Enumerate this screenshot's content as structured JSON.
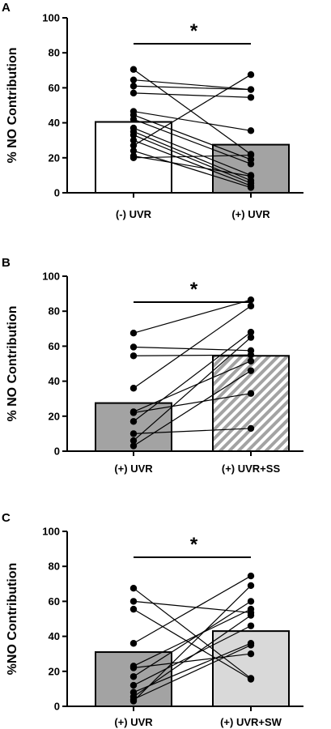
{
  "chart_data": [
    {
      "panel": "A",
      "type": "bar",
      "ylabel": "% NO Contribution",
      "ylim": [
        0,
        100
      ],
      "yticks": [
        0,
        20,
        40,
        60,
        80,
        100
      ],
      "categories": [
        "(-) UVR",
        "(+) UVR"
      ],
      "values": [
        40.5,
        27.5
      ],
      "bar_colors": [
        "#ffffff",
        "#a3a3a3"
      ],
      "bar_patterns": [
        "none",
        "none"
      ],
      "paired": [
        [
          70.5,
          22
        ],
        [
          64.5,
          59
        ],
        [
          61,
          59
        ],
        [
          57,
          54.5
        ],
        [
          46.5,
          35.5
        ],
        [
          44.5,
          19
        ],
        [
          42,
          16.5
        ],
        [
          37,
          10
        ],
        [
          35,
          7
        ],
        [
          33,
          5.5
        ],
        [
          30,
          4
        ],
        [
          27,
          67.5
        ],
        [
          24,
          3
        ],
        [
          21,
          9.5
        ],
        [
          20,
          21.5
        ]
      ],
      "significance": "*"
    },
    {
      "panel": "B",
      "type": "bar",
      "ylabel": "% NO Contribution",
      "ylim": [
        0,
        100
      ],
      "yticks": [
        0,
        20,
        40,
        60,
        80,
        100
      ],
      "categories": [
        "(+) UVR",
        "(+) UVR+SS"
      ],
      "values": [
        27.5,
        54.5
      ],
      "bar_colors": [
        "#a3a3a3",
        "#ffffff"
      ],
      "bar_patterns": [
        "none",
        "hatch"
      ],
      "paired": [
        [
          67.5,
          86.5
        ],
        [
          59.5,
          57.5
        ],
        [
          54.5,
          55
        ],
        [
          36,
          83
        ],
        [
          22.5,
          51.5
        ],
        [
          22,
          33
        ],
        [
          17,
          68
        ],
        [
          10,
          13
        ],
        [
          6,
          65
        ],
        [
          3,
          46
        ]
      ],
      "significance": "*"
    },
    {
      "panel": "C",
      "type": "bar",
      "ylabel": "%NO Contribution",
      "ylim": [
        0,
        100
      ],
      "yticks": [
        0,
        20,
        40,
        60,
        80,
        100
      ],
      "categories": [
        "(+) UVR",
        "(+) UVR+SW"
      ],
      "values": [
        31,
        43
      ],
      "bar_colors": [
        "#a3a3a3",
        "#d9d9d9"
      ],
      "bar_patterns": [
        "none",
        "none"
      ],
      "paired": [
        [
          67.5,
          16
        ],
        [
          60,
          53.5
        ],
        [
          55.5,
          15.5
        ],
        [
          36,
          74.5
        ],
        [
          23,
          55.5
        ],
        [
          22,
          30
        ],
        [
          17,
          60
        ],
        [
          12,
          46
        ],
        [
          8,
          36
        ],
        [
          5.5,
          52
        ],
        [
          4,
          35
        ],
        [
          3,
          69
        ]
      ],
      "significance": "*"
    }
  ]
}
